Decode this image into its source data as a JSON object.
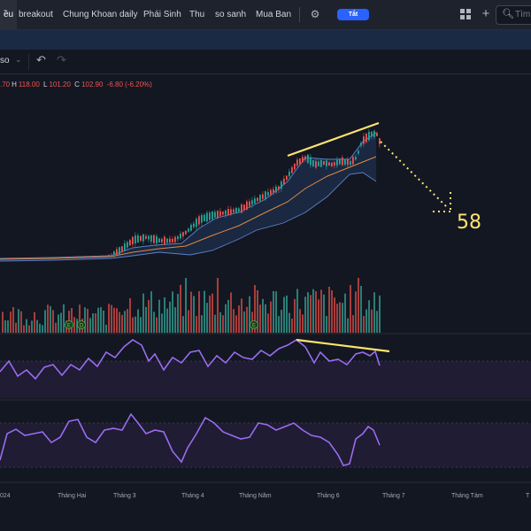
{
  "tabs": {
    "active": "ều",
    "items": [
      "breakout",
      "Chung Khoan daily",
      "Phái Sinh",
      "Thu",
      "so sanh",
      "Mua Ban"
    ]
  },
  "toolbar": {
    "toggle_label": "Tắt",
    "search_text": "Tìm",
    "interval": "so",
    "interval_caret": "⌄",
    "icons": [
      "gear-icon",
      "layout-icon",
      "plus-icon",
      "search-icon",
      "undo-icon",
      "redo-icon"
    ]
  },
  "legend": {
    "open": ".70",
    "high_key": "H",
    "high": "118.00",
    "low_key": "L",
    "low": "101.20",
    "close_key": "C",
    "close": "102.90",
    "change": "-6.80 (-6.20%)"
  },
  "annotation": {
    "target": "58"
  },
  "volume_markers": [
    "E",
    "D",
    "E"
  ],
  "time_axis": [
    "024",
    "Tháng Hai",
    "Tháng 3",
    "Tháng 4",
    "Tháng Năm",
    "Tháng 6",
    "Tháng 7",
    "Tháng Tám",
    "T"
  ],
  "colors": {
    "background": "#131722",
    "up": "#26a69a",
    "down": "#ef5350",
    "oscillator": "#9a6cf0",
    "trendline": "#ffe36e",
    "active_toggle": "#2962ff"
  }
}
